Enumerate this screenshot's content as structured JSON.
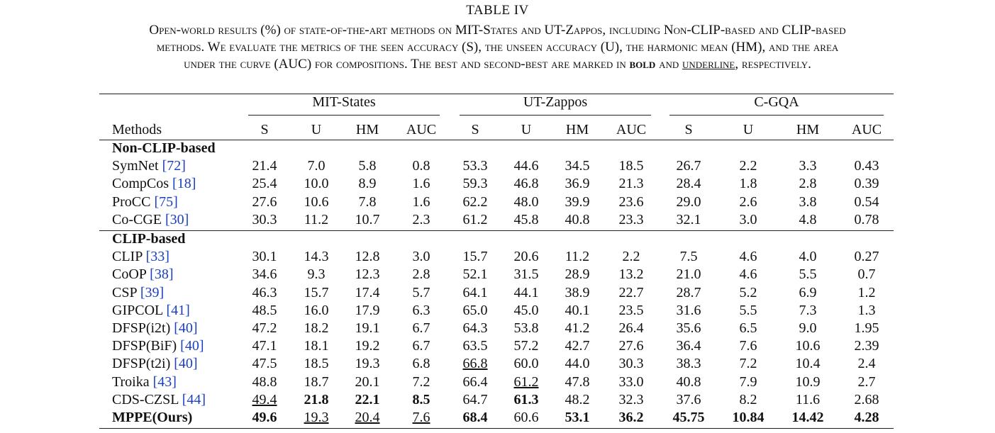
{
  "table_label": "TABLE IV",
  "caption": [
    "Open-world results (%) of state-of-the-art methods on MIT-States and UT-Zappos, including Non-CLIP-based and CLIP-based",
    "methods. We evaluate the metrics of the seen accuracy (S), the unseen accuracy (U), the harmonic mean (HM), and the area",
    "under the curve (AUC) for compositions. The best and second-best are marked in ",
    "bold",
    " and ",
    "underline",
    ", respectively."
  ],
  "groups": [
    "MIT-States",
    "UT-Zappos",
    "C-GQA"
  ],
  "methods_header": "Methods",
  "metric_headers": [
    "S",
    "U",
    "HM",
    "AUC",
    "S",
    "U",
    "HM",
    "AUC",
    "S",
    "U",
    "HM",
    "AUC"
  ],
  "sections": [
    {
      "title": "Non-CLIP-based",
      "rows": [
        {
          "name": "SymNet ",
          "ref": "[72]",
          "values": [
            "21.4",
            "7.0",
            "5.8",
            "0.8",
            "53.3",
            "44.6",
            "34.5",
            "18.5",
            "26.7",
            "2.2",
            "3.3",
            "0.43"
          ],
          "bold": [],
          "underline": []
        },
        {
          "name": "CompCos ",
          "ref": "[18]",
          "values": [
            "25.4",
            "10.0",
            "8.9",
            "1.6",
            "59.3",
            "46.8",
            "36.9",
            "21.3",
            "28.4",
            "1.8",
            "2.8",
            "0.39"
          ],
          "bold": [],
          "underline": []
        },
        {
          "name": "ProCC ",
          "ref": "[75]",
          "values": [
            "27.6",
            "10.6",
            "7.8",
            "1.6",
            "62.2",
            "48.0",
            "39.9",
            "23.6",
            "29.0",
            "2.6",
            "3.8",
            "0.54"
          ],
          "bold": [],
          "underline": []
        },
        {
          "name": "Co-CGE ",
          "ref": "[30]",
          "values": [
            "30.3",
            "11.2",
            "10.7",
            "2.3",
            "61.2",
            "45.8",
            "40.8",
            "23.3",
            "32.1",
            "3.0",
            "4.8",
            "0.78"
          ],
          "bold": [],
          "underline": []
        }
      ]
    },
    {
      "title": "CLIP-based",
      "rows": [
        {
          "name": "CLIP ",
          "ref": "[33]",
          "values": [
            "30.1",
            "14.3",
            "12.8",
            "3.0",
            "15.7",
            "20.6",
            "11.2",
            "2.2",
            "7.5",
            "4.6",
            "4.0",
            "0.27"
          ],
          "bold": [],
          "underline": []
        },
        {
          "name": "CoOP ",
          "ref": "[38]",
          "values": [
            "34.6",
            "9.3",
            "12.3",
            "2.8",
            "52.1",
            "31.5",
            "28.9",
            "13.2",
            "21.0",
            "4.6",
            "5.5",
            "0.7"
          ],
          "bold": [],
          "underline": []
        },
        {
          "name": "CSP ",
          "ref": "[39]",
          "values": [
            "46.3",
            "15.7",
            "17.4",
            "5.7",
            "64.1",
            "44.1",
            "38.9",
            "22.7",
            "28.7",
            "5.2",
            "6.9",
            "1.2"
          ],
          "bold": [],
          "underline": []
        },
        {
          "name": "GIPCOL ",
          "ref": "[41]",
          "values": [
            "48.5",
            "16.0",
            "17.9",
            "6.3",
            "65.0",
            "45.0",
            "40.1",
            "23.5",
            "31.6",
            "5.5",
            "7.3",
            "1.3"
          ],
          "bold": [],
          "underline": []
        },
        {
          "name": "DFSP(i2t) ",
          "ref": "[40]",
          "values": [
            "47.2",
            "18.2",
            "19.1",
            "6.7",
            "64.3",
            "53.8",
            "41.2",
            "26.4",
            "35.6",
            "6.5",
            "9.0",
            "1.95"
          ],
          "bold": [],
          "underline": []
        },
        {
          "name": "DFSP(BiF) ",
          "ref": "[40]",
          "values": [
            "47.1",
            "18.1",
            "19.2",
            "6.7",
            "63.5",
            "57.2",
            "42.7",
            "27.6",
            "36.4",
            "7.6",
            "10.6",
            "2.39"
          ],
          "bold": [],
          "underline": []
        },
        {
          "name": "DFSP(t2i) ",
          "ref": "[40]",
          "values": [
            "47.5",
            "18.5",
            "19.3",
            "6.8",
            "66.8",
            "60.0",
            "44.0",
            "30.3",
            "38.3",
            "7.2",
            "10.4",
            "2.4"
          ],
          "bold": [],
          "underline": [
            4
          ]
        },
        {
          "name": "Troika ",
          "ref": "[43]",
          "values": [
            "48.8",
            "18.7",
            "20.1",
            "7.2",
            "66.4",
            "61.2",
            "47.8",
            "33.0",
            "40.8",
            "7.9",
            "10.9",
            "2.7"
          ],
          "bold": [],
          "underline": [
            5
          ]
        },
        {
          "name": "CDS-CZSL ",
          "ref": "[44]",
          "values": [
            "49.4",
            "21.8",
            "22.1",
            "8.5",
            "64.7",
            "61.3",
            "48.2",
            "32.3",
            "37.6",
            "8.2",
            "11.6",
            "2.68"
          ],
          "bold": [
            1,
            2,
            3,
            5
          ],
          "underline": [
            0
          ]
        },
        {
          "name": "MPPE(Ours)",
          "ref": "",
          "values": [
            "49.6",
            "19.3",
            "20.4",
            "7.6",
            "68.4",
            "60.6",
            "53.1",
            "36.2",
            "45.75",
            "10.84",
            "14.42",
            "4.28"
          ],
          "bold": [
            0,
            4,
            6,
            7,
            8,
            9,
            10,
            11
          ],
          "underline": [
            1,
            2,
            3
          ],
          "name_bold": true
        }
      ]
    }
  ]
}
